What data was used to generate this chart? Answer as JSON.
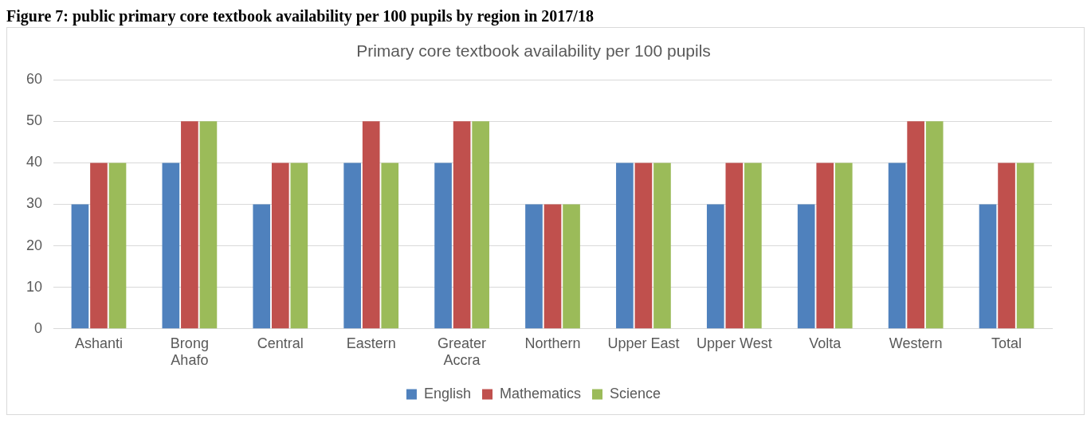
{
  "chart_data": {
    "type": "bar",
    "title": "Primary core textbook availability per 100 pupils",
    "annotations": [
      "Figure 7: public primary core textbook availability per 100 pupils by region in 2017/18"
    ],
    "categories": [
      "Ashanti",
      "Brong Ahafo",
      "Central",
      "Eastern",
      "Greater Accra",
      "Northern",
      "Upper East",
      "Upper West",
      "Volta",
      "Western",
      "Total"
    ],
    "series": [
      {
        "name": "English",
        "color": "#4f81bd",
        "values": [
          30,
          40,
          30,
          40,
          40,
          30,
          40,
          30,
          30,
          40,
          30
        ]
      },
      {
        "name": "Mathematics",
        "color": "#c0504d",
        "values": [
          40,
          50,
          40,
          50,
          50,
          30,
          40,
          40,
          40,
          50,
          40
        ]
      },
      {
        "name": "Science",
        "color": "#9bbb59",
        "values": [
          40,
          50,
          40,
          40,
          50,
          30,
          40,
          40,
          40,
          50,
          40
        ]
      }
    ],
    "ylim": [
      0,
      60
    ],
    "yticks": [
      0,
      10,
      20,
      30,
      40,
      50,
      60
    ],
    "grid": "y",
    "legend": "bottom"
  }
}
